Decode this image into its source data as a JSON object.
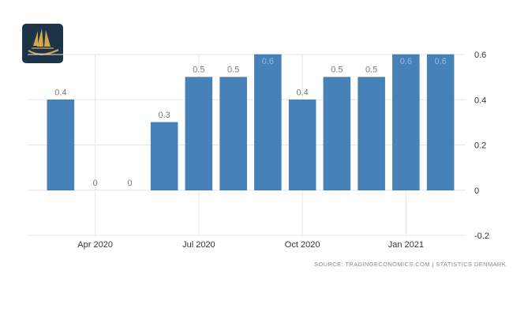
{
  "logo": {
    "icon": "golden-sailboat-logo",
    "bg_color": "#1c3348",
    "accent_color": "#d4a64a"
  },
  "source": {
    "text": "SOURCE: TRADINGECONOMICS.COM  |  STATISTICS DENMARK"
  },
  "colors": {
    "bar": "#4682b9",
    "bar_stroke": "#3f76a8",
    "grid": "#e6e6e6"
  },
  "chart_data": {
    "type": "bar",
    "x": [
      "2020-03",
      "2020-04",
      "2020-05",
      "2020-06",
      "2020-07",
      "2020-08",
      "2020-09",
      "2020-10",
      "2020-11",
      "2020-12",
      "2021-01",
      "2021-02"
    ],
    "values": [
      0.4,
      0,
      0,
      0.3,
      0.5,
      0.5,
      0.6,
      0.4,
      0.5,
      0.5,
      0.6,
      0.6
    ],
    "value_labels": [
      "0.4",
      "0",
      "0",
      "0.3",
      "0.5",
      "0.5",
      "0.6",
      "0.4",
      "0.5",
      "0.5",
      "0.6",
      "0.6"
    ],
    "x_ticks": [
      {
        "label": "Apr 2020",
        "at": "2020-04"
      },
      {
        "label": "Jul 2020",
        "at": "2020-07"
      },
      {
        "label": "Oct 2020",
        "at": "2020-10"
      },
      {
        "label": "Jan 2021",
        "at": "2021-01"
      }
    ],
    "y_ticks": [
      {
        "label": "0.6",
        "value": 0.6
      },
      {
        "label": "0.4",
        "value": 0.4
      },
      {
        "label": "0.2",
        "value": 0.2
      },
      {
        "label": "0",
        "value": 0
      },
      {
        "label": "-0.2",
        "value": -0.2
      }
    ],
    "ylim": [
      -0.2,
      0.6
    ],
    "grid": true,
    "y_axis_side": "right",
    "legend": false
  }
}
